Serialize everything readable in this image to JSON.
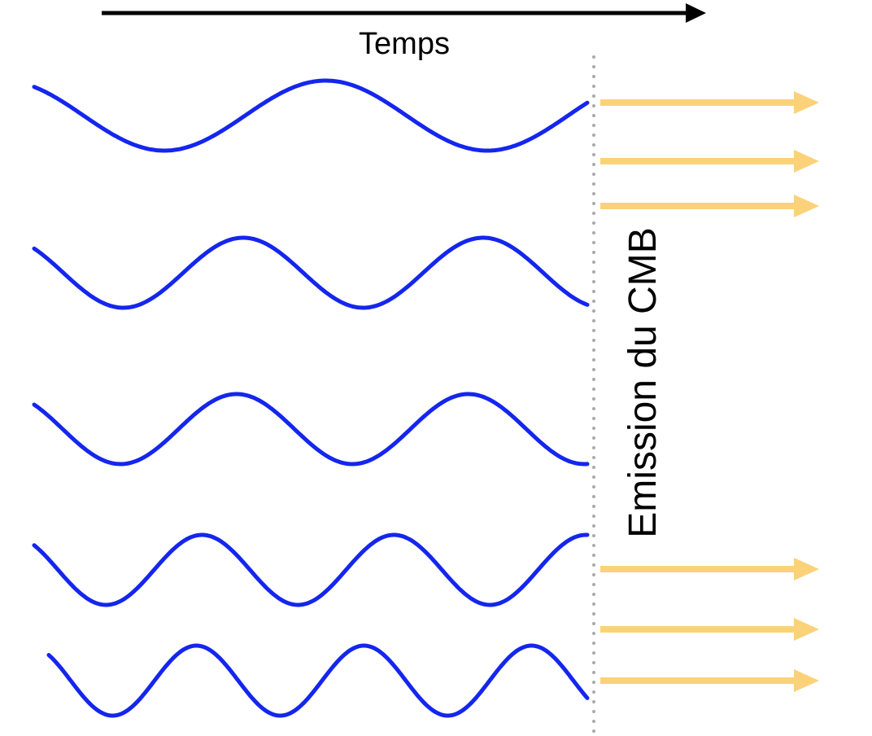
{
  "time_axis": {
    "label": "Temps",
    "color": "#000000"
  },
  "emission_line": {
    "label": "Emission du CMB",
    "color": "#aaaaaa"
  },
  "waves": {
    "color": "#1426ee",
    "items": [
      {
        "name": "wave-1",
        "cycles_shown": 1.75
      },
      {
        "name": "wave-2",
        "cycles_shown": 2.3
      },
      {
        "name": "wave-3",
        "cycles_shown": 2.4
      },
      {
        "name": "wave-4",
        "cycles_shown": 2.9
      },
      {
        "name": "wave-5",
        "cycles_shown": 3.2
      }
    ]
  },
  "photon_arrows": {
    "color": "#fbd27a",
    "count": 6
  }
}
